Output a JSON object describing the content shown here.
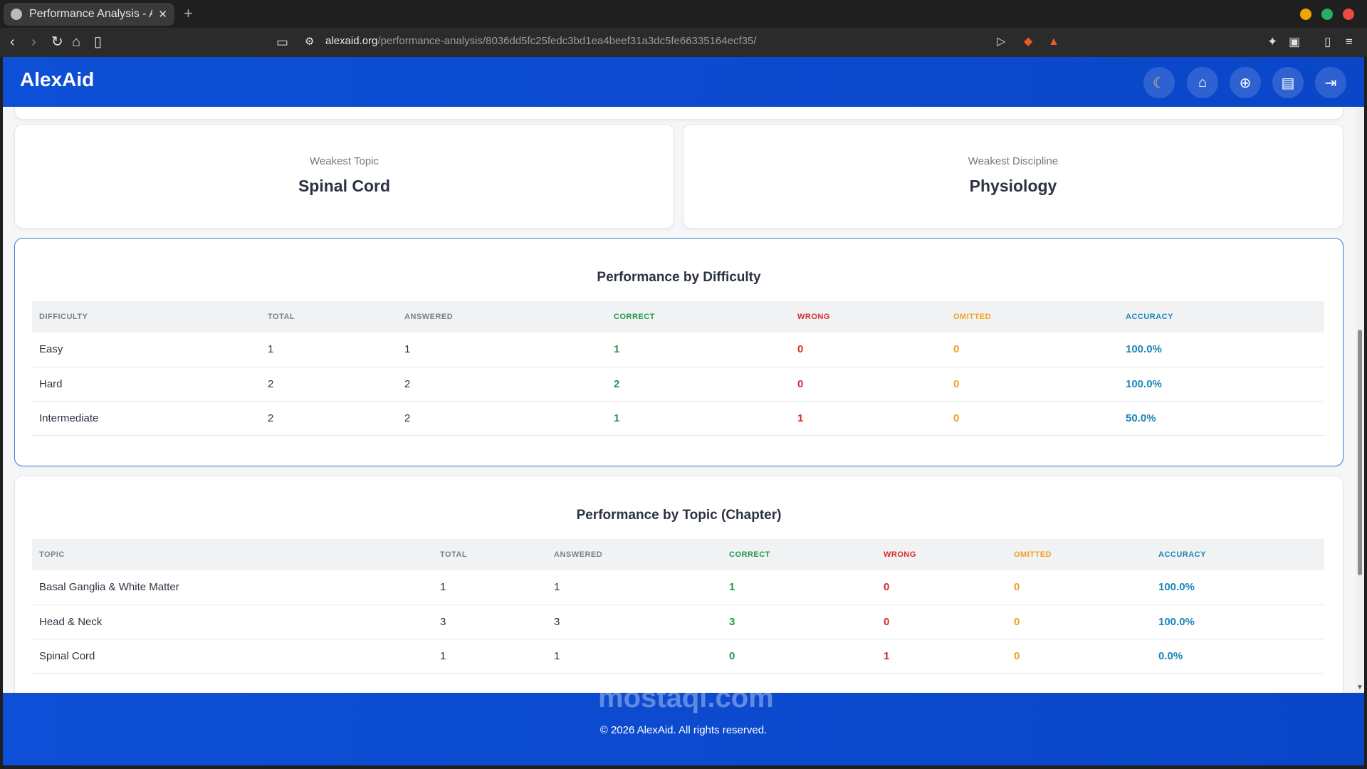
{
  "browser": {
    "tab_title": "Performance Analysis - AlexAid",
    "url_host": "alexaid.org",
    "url_path": "/performance-analysis/8036dd5fc25fedc3bd1ea4beef31a3dc5fe66335164ecf35/",
    "colors": {
      "close": "#e74c3c",
      "minimize": "#f0a500",
      "maximize": "#27ae60"
    }
  },
  "app": {
    "brand": "AlexAid",
    "nav": [
      "moon-icon",
      "home-icon",
      "plus-circle-icon",
      "clipboard-icon",
      "logout-icon"
    ]
  },
  "stats": {
    "weakest_topic": {
      "label": "Weakest Topic",
      "value": "Spinal Cord"
    },
    "weakest_discipline": {
      "label": "Weakest Discipline",
      "value": "Physiology"
    }
  },
  "difficulty": {
    "title": "Performance by Difficulty",
    "headers": [
      "DIFFICULTY",
      "TOTAL",
      "ANSWERED",
      "CORRECT",
      "WRONG",
      "OMITTED",
      "ACCURACY"
    ],
    "rows": [
      [
        "Easy",
        "1",
        "1",
        "1",
        "0",
        "0",
        "100.0%"
      ],
      [
        "Hard",
        "2",
        "2",
        "2",
        "0",
        "0",
        "100.0%"
      ],
      [
        "Intermediate",
        "2",
        "2",
        "1",
        "1",
        "0",
        "50.0%"
      ]
    ]
  },
  "topic": {
    "title": "Performance by Topic (Chapter)",
    "headers": [
      "TOPIC",
      "TOTAL",
      "ANSWERED",
      "CORRECT",
      "WRONG",
      "OMITTED",
      "ACCURACY"
    ],
    "rows": [
      [
        "Basal Ganglia & White Matter",
        "1",
        "1",
        "1",
        "0",
        "0",
        "100.0%"
      ],
      [
        "Head & Neck",
        "3",
        "3",
        "3",
        "0",
        "0",
        "100.0%"
      ],
      [
        "Spinal Cord",
        "1",
        "1",
        "0",
        "1",
        "0",
        "0.0%"
      ]
    ]
  },
  "footer": {
    "copyright": "© 2026 AlexAid. All rights reserved."
  },
  "watermark": "mostaql.com"
}
